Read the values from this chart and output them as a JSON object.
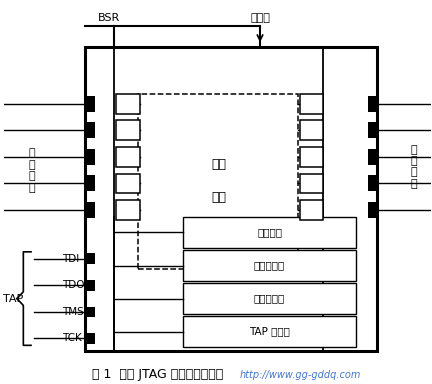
{
  "title": "图 1  支持 JTAG 标准的芯片结构",
  "title_color": "#000000",
  "title_fontsize": 9,
  "watermark": "http://www.gg-gddq.com",
  "bsr_label": "BSR",
  "scan_chain_label": "扫描链",
  "input_label": [
    "输",
    "入",
    "引",
    "脚"
  ],
  "output_label": [
    "输",
    "出",
    "引",
    "脚"
  ],
  "tap_label": "TAP",
  "tap_pins": [
    "TDI",
    "TDO",
    "TMS",
    "TCK"
  ],
  "reg_boxes": [
    "器件识别",
    "旁路寄存器",
    "指令寄存器",
    "TAP 控制器"
  ],
  "core_text": [
    "芯片",
    "内核"
  ]
}
